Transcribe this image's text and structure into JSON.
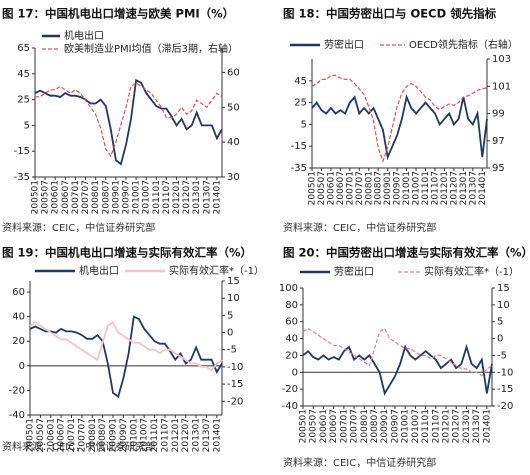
{
  "chart_data": [
    {
      "type": "line",
      "title": "图 17：中国机电出口增速与欧美 PMI（%）",
      "source": "资料来源：CEIC，中信证券研究部",
      "categories": [
        "200501",
        null,
        "200507",
        null,
        "200601",
        null,
        "200607",
        null,
        "200701",
        null,
        "200707",
        null,
        "200801",
        null,
        "200807",
        null,
        "200901",
        null,
        "200907",
        null,
        "201001",
        null,
        "201007",
        null,
        "201101",
        null,
        "201107",
        null,
        "201201",
        null,
        "201207",
        null,
        "201301",
        null,
        "201307",
        null,
        "201401",
        null
      ],
      "ylim": [
        -35,
        65
      ],
      "yticks": [
        -35,
        -15,
        5,
        25,
        45,
        65
      ],
      "y2lim": [
        30,
        67
      ],
      "y2ticks": [
        30,
        40,
        50,
        60
      ],
      "zero_line": false,
      "series": [
        {
          "name": "机电出口",
          "color": "#1f3864",
          "dash": false,
          "values": [
            30,
            32,
            30,
            28,
            28,
            27,
            30,
            28,
            28,
            27,
            25,
            22,
            22,
            25,
            20,
            2,
            -22,
            -25,
            -10,
            10,
            40,
            38,
            30,
            25,
            20,
            18,
            18,
            12,
            5,
            10,
            2,
            5,
            15,
            5,
            5,
            5,
            -5,
            2
          ]
        },
        {
          "name": "欧美制造业PMI均值（滞后3期，右轴）",
          "color": "#e05050",
          "dash": true,
          "axis": "y2",
          "values": [
            53,
            53,
            54,
            55,
            55,
            56,
            55,
            54,
            55,
            54,
            52,
            50,
            48,
            44,
            38,
            36,
            40,
            45,
            50,
            56,
            57,
            56,
            55,
            54,
            52,
            50,
            47,
            47,
            48,
            50,
            48,
            49,
            52,
            51,
            50,
            52,
            54,
            53
          ]
        }
      ]
    },
    {
      "type": "line",
      "title": "图 18：中国劳密出口与 OECD 领先指标",
      "source": "资料来源：CEIC，中信证券研究部",
      "categories": [
        "200501",
        null,
        "200507",
        null,
        "200601",
        null,
        "200607",
        null,
        "200701",
        null,
        "200707",
        null,
        "200801",
        null,
        "200807",
        null,
        "200901",
        null,
        "200907",
        null,
        "201001",
        null,
        "201007",
        null,
        "201101",
        null,
        "201107",
        null,
        "201201",
        null,
        "201207",
        null,
        "201301",
        null,
        "201307",
        null,
        "201401",
        null
      ],
      "ylim": [
        -35,
        65
      ],
      "yticks": [
        -35,
        -15,
        5,
        25,
        45
      ],
      "y2lim": [
        95,
        103
      ],
      "y2ticks": [
        95,
        97,
        99,
        101,
        103
      ],
      "zero_line": false,
      "series": [
        {
          "name": "劳密出口",
          "color": "#1f3864",
          "dash": false,
          "values": [
            20,
            25,
            18,
            15,
            20,
            15,
            18,
            15,
            25,
            30,
            15,
            20,
            15,
            20,
            10,
            0,
            -25,
            -15,
            -5,
            10,
            30,
            20,
            15,
            20,
            25,
            20,
            15,
            5,
            10,
            15,
            5,
            10,
            30,
            10,
            5,
            15,
            -25,
            10
          ]
        },
        {
          "name": "OECD领先指标（右轴）",
          "color": "#e05050",
          "dash": true,
          "axis": "y2",
          "values": [
            101,
            101.2,
            101.5,
            101.5,
            101.8,
            101.8,
            101.6,
            101.5,
            101.5,
            101.2,
            100.8,
            100.4,
            99.5,
            98.5,
            96.5,
            95.5,
            96.5,
            98,
            99.5,
            100.5,
            101,
            101.2,
            101,
            100.6,
            100.2,
            100,
            99.5,
            99.3,
            99.5,
            99.7,
            99.6,
            99.8,
            100.2,
            100.3,
            100.5,
            100.7,
            100.8,
            100.9
          ]
        }
      ]
    },
    {
      "type": "line",
      "title": "图 19：中国机电出口增速与实际有效汇率（%）",
      "source": "资料来源：CEIC，中信证券研究部",
      "categories": [
        "200501",
        null,
        "200507",
        null,
        "200601",
        null,
        "200607",
        null,
        "200701",
        null,
        "200707",
        null,
        "200801",
        null,
        "200807",
        null,
        "200901",
        null,
        "200907",
        null,
        "201001",
        null,
        "201007",
        null,
        "201101",
        null,
        "201107",
        null,
        "201201",
        null,
        "201207",
        null,
        "201301",
        null,
        "201307",
        null,
        "201401",
        null
      ],
      "ylim": [
        -40,
        69
      ],
      "yticks": [
        -40,
        -20,
        0,
        20,
        40,
        60
      ],
      "y2lim": [
        -24,
        15
      ],
      "y2ticks": [
        -20,
        -15,
        -10,
        -5,
        0,
        5,
        10,
        15
      ],
      "zero_line": true,
      "series": [
        {
          "name": "机电出口",
          "color": "#1f3864",
          "dash": false,
          "values": [
            30,
            32,
            30,
            28,
            28,
            27,
            30,
            28,
            28,
            27,
            25,
            22,
            22,
            25,
            20,
            2,
            -22,
            -25,
            -10,
            10,
            40,
            38,
            30,
            25,
            20,
            18,
            18,
            12,
            5,
            10,
            2,
            5,
            15,
            5,
            5,
            5,
            -5,
            2
          ]
        },
        {
          "name": "实际有效汇率*（-1）",
          "color": "#f6c4c4",
          "dash": false,
          "axis": "y2",
          "values": [
            2,
            3,
            2,
            1,
            0,
            -1,
            -2,
            -2,
            -3,
            -4,
            -5,
            -6,
            -7,
            -8,
            -3,
            2,
            3,
            0,
            -1,
            -2,
            -3,
            -3,
            -4,
            -5,
            -5,
            -6,
            -5,
            -5,
            -6,
            -7,
            -8,
            -9,
            -9,
            -10,
            -10,
            -11,
            -9,
            -8
          ]
        }
      ]
    },
    {
      "type": "line",
      "title": "图 20：中国劳密出口增速与实际有效汇率（%）",
      "source": "资料来源：CEIC，中信证券研究部",
      "categories": [
        "200501",
        null,
        "200507",
        null,
        "200601",
        null,
        "200607",
        null,
        "200701",
        null,
        "200707",
        null,
        "200801",
        null,
        "200807",
        null,
        "200901",
        null,
        "200907",
        null,
        "201001",
        null,
        "201007",
        null,
        "201101",
        null,
        "201107",
        null,
        "201201",
        null,
        "201207",
        null,
        "201301",
        null,
        "201307",
        null,
        "201401",
        null
      ],
      "ylim": [
        -40,
        100
      ],
      "yticks": [
        -40,
        -20,
        0,
        20,
        40,
        60,
        80,
        100
      ],
      "y2lim": [
        -20,
        15
      ],
      "y2ticks": [
        -20,
        -15,
        -10,
        -5,
        0,
        5,
        10,
        15
      ],
      "zero_line": true,
      "series": [
        {
          "name": "劳密出口",
          "color": "#1f3864",
          "dash": false,
          "values": [
            20,
            25,
            18,
            15,
            20,
            15,
            18,
            15,
            25,
            30,
            15,
            20,
            15,
            20,
            10,
            0,
            -25,
            -15,
            -5,
            10,
            30,
            20,
            15,
            20,
            25,
            20,
            15,
            5,
            10,
            15,
            5,
            10,
            30,
            10,
            5,
            15,
            -25,
            10
          ]
        },
        {
          "name": "实际有效汇率*（-1）",
          "color": "#e88080",
          "dash": true,
          "axis": "y2",
          "values": [
            2,
            3,
            2,
            1,
            0,
            -1,
            -2,
            -2,
            -3,
            -4,
            -5,
            -6,
            -7,
            -8,
            -3,
            2,
            3,
            0,
            -1,
            -2,
            -3,
            -3,
            -4,
            -5,
            -5,
            -6,
            -5,
            -5,
            -6,
            -7,
            -8,
            -9,
            -9,
            -10,
            -10,
            -11,
            -9,
            -8
          ]
        }
      ]
    }
  ]
}
